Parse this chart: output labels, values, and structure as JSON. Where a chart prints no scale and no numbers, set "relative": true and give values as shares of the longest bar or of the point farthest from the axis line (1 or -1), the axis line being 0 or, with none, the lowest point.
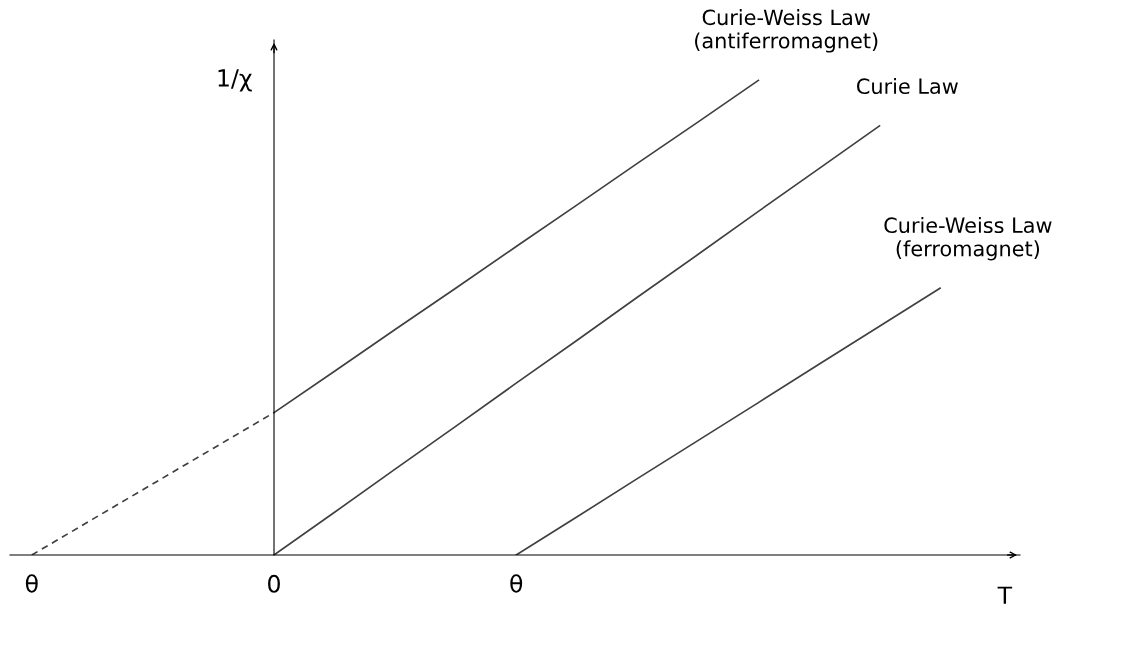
{
  "chart_data": {
    "type": "line",
    "relative": true,
    "xlabel": "T",
    "ylabel": "1/χ",
    "legend": false,
    "marker": "none",
    "categories": [
      "θ",
      null,
      null,
      null,
      "0",
      null,
      null,
      null,
      "θ",
      null,
      null,
      null,
      null,
      null,
      null,
      null,
      null
    ],
    "series": [
      {
        "color": "#404040",
        "line_style": "dashed",
        "values": [
          0,
          0.075,
          0.15,
          0.225,
          0.3,
          null,
          null,
          null,
          null,
          null,
          null,
          null,
          null,
          null,
          null,
          null,
          null
        ]
      },
      {
        "name": "Curie-Weiss Law\n(antiferromagnet)",
        "color": "#404040",
        "line_style": "solid",
        "values": [
          null,
          null,
          null,
          null,
          0.3,
          0.387,
          0.475,
          0.562,
          0.65,
          0.737,
          0.825,
          0.912,
          1,
          null,
          null,
          null,
          null
        ]
      },
      {
        "name": "Curie Law",
        "color": "#404040",
        "line_style": "solid",
        "values": [
          null,
          null,
          null,
          null,
          0,
          0.09,
          0.181,
          0.271,
          0.362,
          0.452,
          0.543,
          0.633,
          0.724,
          0.814,
          0.904,
          null,
          null
        ]
      },
      {
        "name": "Curie-Weiss Law\n(ferromagnet)",
        "color": "#404040",
        "line_style": "solid",
        "values": [
          null,
          null,
          null,
          null,
          null,
          null,
          null,
          null,
          0,
          0.08,
          0.161,
          0.241,
          0.321,
          0.402,
          0.482,
          0.562,
          null
        ]
      }
    ]
  }
}
